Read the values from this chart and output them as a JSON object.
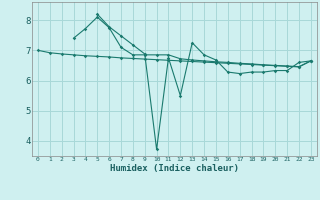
{
  "background_color": "#cff0f0",
  "grid_color": "#a8d8d8",
  "line_color": "#1a7a6e",
  "xlabel": "Humidex (Indice chaleur)",
  "xlim": [
    -0.5,
    23.5
  ],
  "ylim": [
    3.5,
    8.6
  ],
  "yticks": [
    4,
    5,
    6,
    7,
    8
  ],
  "xticks": [
    0,
    1,
    2,
    3,
    4,
    5,
    6,
    7,
    8,
    9,
    10,
    11,
    12,
    13,
    14,
    15,
    16,
    17,
    18,
    19,
    20,
    21,
    22,
    23
  ],
  "line1_x": [
    0,
    1,
    2,
    3,
    4,
    5,
    6,
    7,
    8,
    9,
    10,
    11,
    12,
    13,
    14,
    15,
    16,
    17,
    18,
    19,
    20,
    21,
    22,
    23
  ],
  "line1_y": [
    7.0,
    6.92,
    6.88,
    6.85,
    6.82,
    6.8,
    6.78,
    6.75,
    6.73,
    6.71,
    6.69,
    6.67,
    6.65,
    6.63,
    6.61,
    6.59,
    6.57,
    6.55,
    6.53,
    6.51,
    6.49,
    6.47,
    6.45,
    6.65
  ],
  "line2_x": [
    3,
    4,
    5,
    6,
    7,
    8,
    9,
    10,
    11,
    12,
    13,
    14,
    15,
    16,
    17,
    18,
    19,
    20,
    21,
    22,
    23
  ],
  "line2_y": [
    7.4,
    7.72,
    8.1,
    7.75,
    7.1,
    6.85,
    6.85,
    6.85,
    6.85,
    6.72,
    6.68,
    6.65,
    6.62,
    6.6,
    6.57,
    6.55,
    6.52,
    6.5,
    6.48,
    6.46,
    6.65
  ],
  "line3_x": [
    5,
    6,
    7,
    8,
    9,
    10,
    11,
    12,
    13,
    14,
    15,
    16,
    17,
    18,
    19,
    20,
    21,
    22,
    23
  ],
  "line3_y": [
    8.2,
    7.78,
    7.48,
    7.18,
    6.88,
    3.72,
    6.75,
    5.5,
    7.25,
    6.85,
    6.68,
    6.28,
    6.23,
    6.28,
    6.28,
    6.33,
    6.33,
    6.6,
    6.65
  ]
}
